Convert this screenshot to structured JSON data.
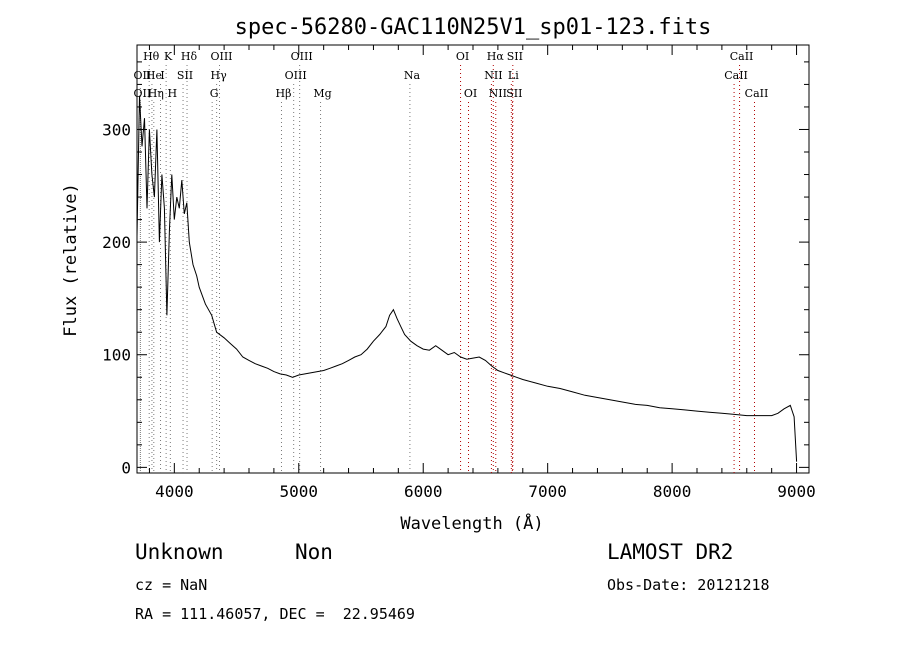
{
  "chart_data": {
    "type": "line",
    "title": "spec-56280-GAC110N25V1_sp01-123.fits",
    "xlabel": "Wavelength (Å)",
    "ylabel": "Flux (relative)",
    "xlim": [
      3700,
      9100
    ],
    "ylim": [
      -5,
      375
    ],
    "xticks": [
      4000,
      5000,
      6000,
      7000,
      8000,
      9000
    ],
    "yticks": [
      0,
      100,
      200,
      300
    ],
    "grid": false,
    "series": [
      {
        "x": [
          3700,
          3720,
          3740,
          3760,
          3780,
          3800,
          3820,
          3840,
          3860,
          3880,
          3900,
          3920,
          3940,
          3960,
          3980,
          4000,
          4020,
          4040,
          4060,
          4080,
          4100,
          4120,
          4150,
          4180,
          4200,
          4250,
          4300,
          4340,
          4400,
          4450,
          4500,
          4550,
          4600,
          4650,
          4700,
          4750,
          4800,
          4850,
          4900,
          4950,
          5000,
          5050,
          5100,
          5150,
          5200,
          5250,
          5300,
          5350,
          5400,
          5450,
          5500,
          5550,
          5600,
          5650,
          5700,
          5730,
          5760,
          5790,
          5820,
          5850,
          5900,
          5950,
          6000,
          6050,
          6100,
          6150,
          6200,
          6250,
          6300,
          6350,
          6400,
          6450,
          6500,
          6550,
          6600,
          6650,
          6700,
          6750,
          6800,
          6900,
          7000,
          7100,
          7200,
          7300,
          7400,
          7500,
          7600,
          7700,
          7800,
          7900,
          8000,
          8100,
          8200,
          8300,
          8400,
          8500,
          8600,
          8700,
          8800,
          8850,
          8900,
          8950,
          8980,
          9000
        ],
        "y": [
          205,
          330,
          285,
          310,
          230,
          300,
          260,
          240,
          300,
          200,
          260,
          230,
          135,
          210,
          260,
          220,
          240,
          230,
          255,
          225,
          235,
          200,
          180,
          170,
          160,
          145,
          135,
          120,
          115,
          110,
          105,
          98,
          95,
          92,
          90,
          88,
          85,
          83,
          82,
          80,
          82,
          83,
          84,
          85,
          86,
          88,
          90,
          92,
          95,
          98,
          100,
          105,
          112,
          118,
          125,
          135,
          140,
          132,
          125,
          118,
          112,
          108,
          105,
          104,
          108,
          104,
          100,
          102,
          98,
          96,
          97,
          98,
          95,
          90,
          86,
          84,
          82,
          80,
          78,
          75,
          72,
          70,
          67,
          64,
          62,
          60,
          58,
          56,
          55,
          53,
          52,
          51,
          50,
          49,
          48,
          47,
          46,
          46,
          46,
          48,
          52,
          55,
          45,
          5
        ]
      }
    ],
    "emission_lines": [
      {
        "label": "Hθ",
        "x": 3798,
        "row": 0
      },
      {
        "label": "K",
        "x": 3934,
        "row": 0
      },
      {
        "label": "Hδ",
        "x": 4102,
        "row": 0
      },
      {
        "label": "OIII",
        "x": 4363,
        "row": 0
      },
      {
        "label": "OIII",
        "x": 5007,
        "row": 0
      },
      {
        "label": "OI",
        "x": 6300,
        "row": 0
      },
      {
        "label": "Hα",
        "x": 6563,
        "row": 0
      },
      {
        "label": "SII",
        "x": 6720,
        "row": 0
      },
      {
        "label": "CaII",
        "x": 8542,
        "row": 0
      },
      {
        "label": "OII",
        "x": 3727,
        "row": 1
      },
      {
        "label": "He",
        "x": 3820,
        "row": 1
      },
      {
        "label": "I",
        "x": 3889,
        "row": 1
      },
      {
        "label": "SII",
        "x": 4070,
        "row": 1
      },
      {
        "label": "Hγ",
        "x": 4340,
        "row": 1
      },
      {
        "label": "OIII",
        "x": 4959,
        "row": 1
      },
      {
        "label": "Na",
        "x": 5893,
        "row": 1
      },
      {
        "label": "NII",
        "x": 6548,
        "row": 1
      },
      {
        "label": "Li",
        "x": 6708,
        "row": 1
      },
      {
        "label": "CaII",
        "x": 8498,
        "row": 1
      },
      {
        "label": "OII",
        "x": 3727,
        "row": 2
      },
      {
        "label": "Hη",
        "x": 3835,
        "row": 2
      },
      {
        "label": "H",
        "x": 3968,
        "row": 2
      },
      {
        "label": "G",
        "x": 4304,
        "row": 2
      },
      {
        "label": "Hβ",
        "x": 4861,
        "row": 2
      },
      {
        "label": "Mg",
        "x": 5175,
        "row": 2
      },
      {
        "label": "OI",
        "x": 6364,
        "row": 2
      },
      {
        "label": "NII",
        "x": 6583,
        "row": 2
      },
      {
        "label": "SII",
        "x": 6716,
        "row": 2
      },
      {
        "label": "CaII",
        "x": 8662,
        "row": 2
      }
    ]
  },
  "footer": {
    "class_label": "Unknown",
    "subclass_label": "Non",
    "survey": "LAMOST DR2",
    "cz": "cz = NaN",
    "obs_date": "Obs-Date: 20121218",
    "coords": "RA = 111.46057, DEC =  22.95469"
  },
  "colors": {
    "spectrum": "#000000",
    "line_markers_dark": "#7a7a7a",
    "line_markers_red": "#b00000",
    "background": "#ffffff"
  }
}
